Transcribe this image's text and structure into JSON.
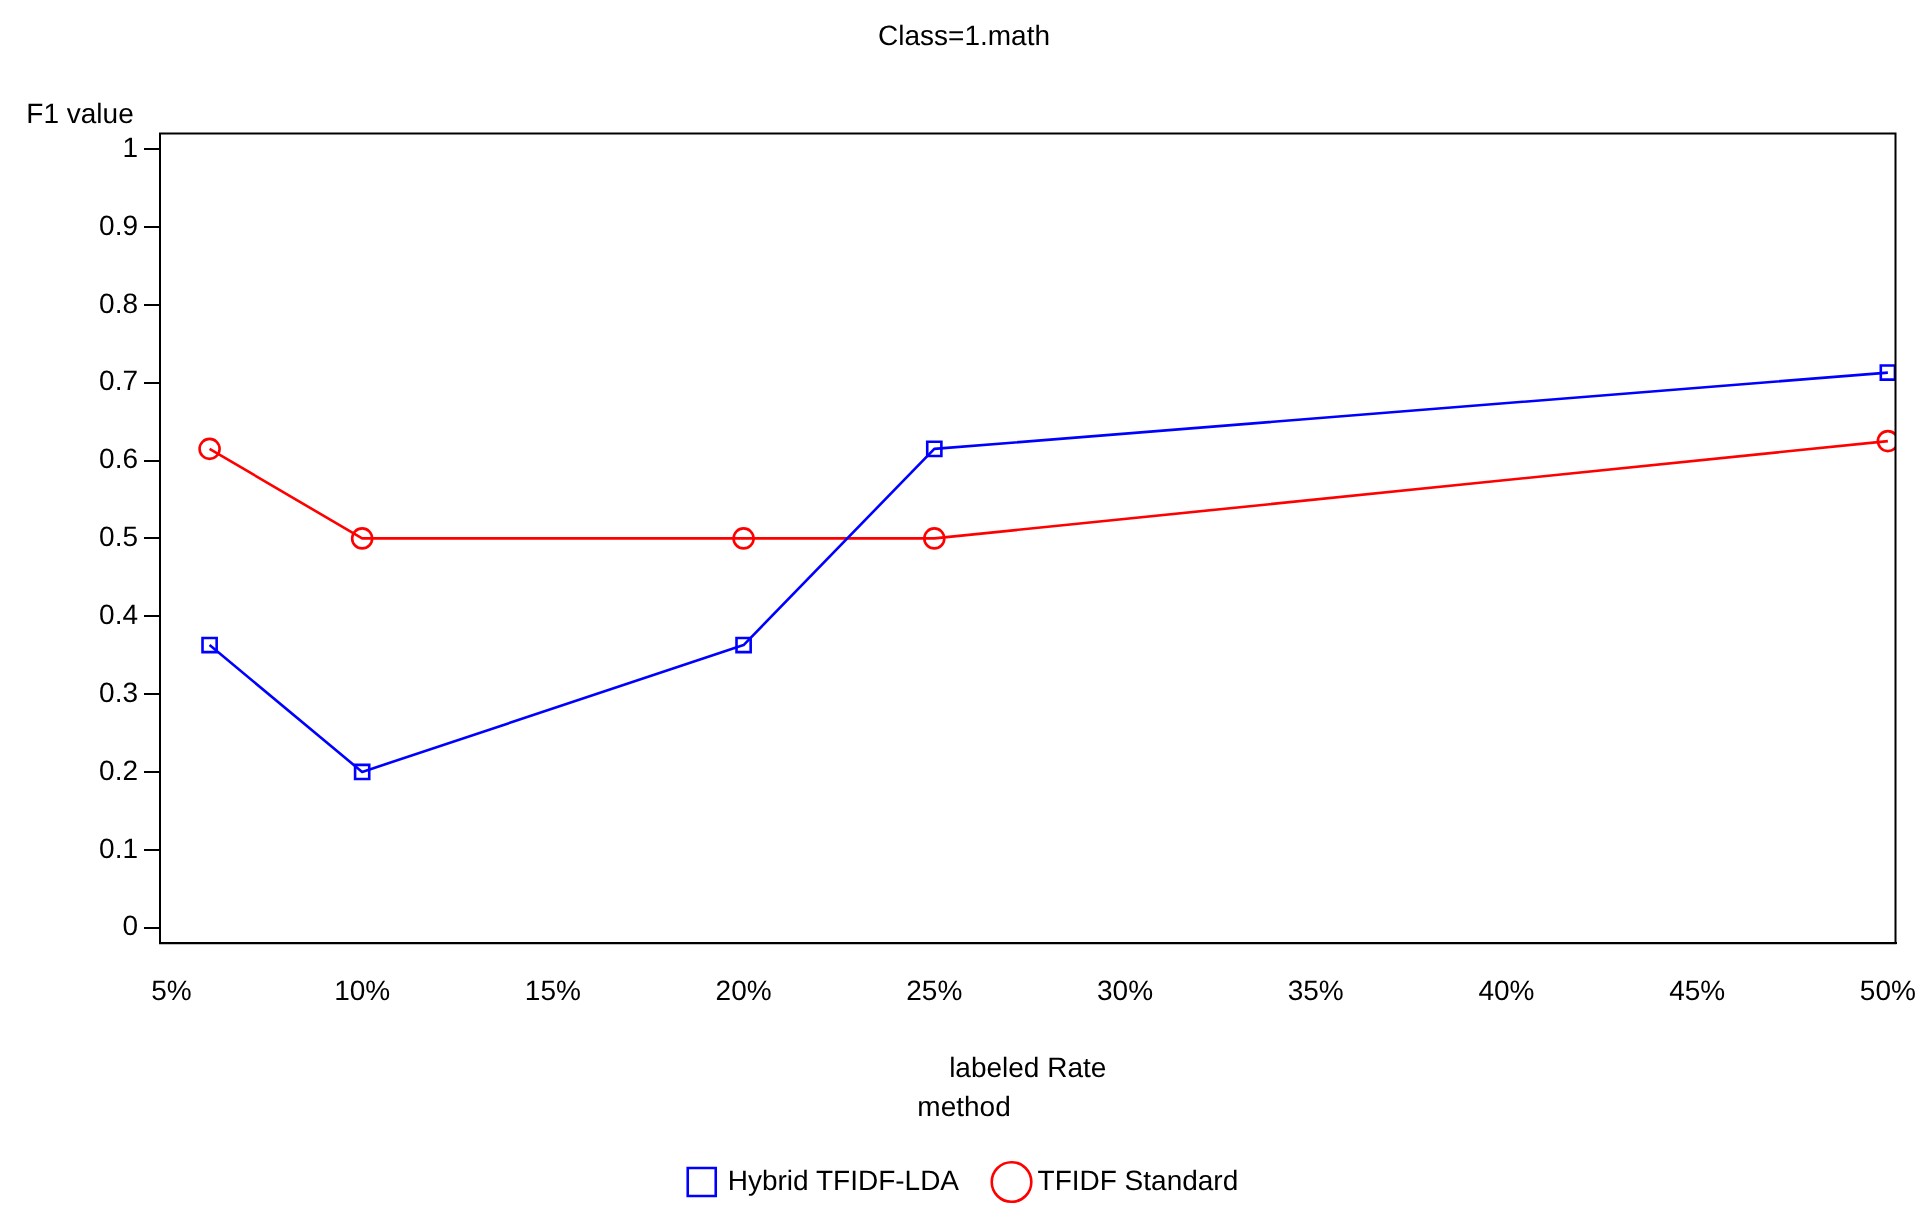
{
  "chart_data": {
    "type": "line",
    "title": "Class=1.math",
    "xlabel": "labeled Rate",
    "ylabel": "F1 value",
    "legend_title": "method",
    "x": [
      6,
      10,
      20,
      25,
      50
    ],
    "series": [
      {
        "name": "Hybrid TFIDF-LDA",
        "color": "#0000ff",
        "marker": "square",
        "values": [
          0.363,
          0.2,
          0.363,
          0.615,
          0.713
        ]
      },
      {
        "name": "TFIDF Standard",
        "color": "#ff0000",
        "marker": "circle",
        "values": [
          0.615,
          0.5,
          0.5,
          0.5,
          0.625
        ]
      }
    ],
    "xlim": [
      4.7,
      50.2
    ],
    "ylim": [
      -0.02,
      1.02
    ],
    "xticks": [
      {
        "value": 5,
        "label": "5%"
      },
      {
        "value": 10,
        "label": "10%"
      },
      {
        "value": 15,
        "label": "15%"
      },
      {
        "value": 20,
        "label": "20%"
      },
      {
        "value": 25,
        "label": "25%"
      },
      {
        "value": 30,
        "label": "30%"
      },
      {
        "value": 35,
        "label": "35%"
      },
      {
        "value": 40,
        "label": "40%"
      },
      {
        "value": 45,
        "label": "45%"
      },
      {
        "value": 50,
        "label": "50%"
      }
    ],
    "yticks": [
      0,
      0.1,
      0.2,
      0.3,
      0.4,
      0.5,
      0.6,
      0.7,
      0.8,
      0.9,
      1
    ],
    "grid": false,
    "legend": "bottom",
    "line_style": "solid"
  }
}
